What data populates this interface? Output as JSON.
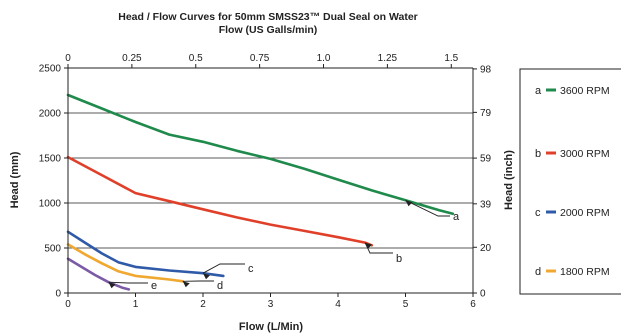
{
  "chart_data": {
    "type": "line",
    "title": "Head / Flow Curves for 50mm SMSS23™ Dual Seal on Water",
    "xlabel": "Flow (L/Min)",
    "ylabel": "Head (mm)",
    "x_top_label": "Flow (US Galls/min)",
    "y_right_label": "Head (inch)",
    "xlim": [
      0,
      6
    ],
    "ylim": [
      0,
      2500
    ],
    "x_ticks": [
      "0",
      "1",
      "2",
      "3",
      "4",
      "5",
      "6"
    ],
    "y_ticks": [
      "0",
      "500",
      "1000",
      "1500",
      "2000",
      "2500"
    ],
    "x_top_ticks": [
      {
        "value": 0,
        "label": "0"
      },
      {
        "value": 0.25,
        "label": "0.25"
      },
      {
        "value": 0.5,
        "label": "0.5"
      },
      {
        "value": 0.75,
        "label": "0.75"
      },
      {
        "value": 1.0,
        "label": "1.0"
      },
      {
        "value": 1.25,
        "label": "1.25"
      },
      {
        "value": 1.5,
        "label": "1.5"
      }
    ],
    "y_right_ticks": [
      {
        "value": 0,
        "label": "0"
      },
      {
        "value": 20,
        "label": "20"
      },
      {
        "value": 39,
        "label": "39"
      },
      {
        "value": 59,
        "label": "59"
      },
      {
        "value": 79,
        "label": "79"
      },
      {
        "value": 98,
        "label": "98"
      }
    ],
    "gridlines_y": [
      500,
      1000,
      1500,
      2000
    ],
    "series": [
      {
        "letter": "a",
        "rpm": "3600 RPM",
        "color": "#1f8a4c",
        "x": [
          0,
          0.5,
          1.0,
          1.5,
          2.0,
          2.5,
          3.0,
          3.5,
          4.0,
          4.5,
          5.0,
          5.5,
          5.7
        ],
        "y": [
          2200,
          2050,
          1900,
          1760,
          1680,
          1580,
          1490,
          1380,
          1260,
          1140,
          1030,
          920,
          880
        ]
      },
      {
        "letter": "b",
        "rpm": "3000 RPM",
        "color": "#e0402a",
        "x": [
          0,
          0.5,
          1.0,
          1.5,
          2.0,
          2.5,
          3.0,
          3.5,
          4.0,
          4.4,
          4.5
        ],
        "y": [
          1510,
          1310,
          1110,
          1020,
          930,
          840,
          760,
          690,
          620,
          560,
          530
        ]
      },
      {
        "letter": "c",
        "rpm": "2000 RPM",
        "color": "#2f5aa8",
        "x": [
          0,
          0.25,
          0.5,
          0.75,
          1.0,
          1.5,
          2.0,
          2.3
        ],
        "y": [
          680,
          560,
          440,
          340,
          290,
          250,
          220,
          190
        ]
      },
      {
        "letter": "d",
        "rpm": "1800 RPM",
        "color": "#f0a830",
        "x": [
          0,
          0.25,
          0.5,
          0.75,
          1.0,
          1.25,
          1.5,
          1.7
        ],
        "y": [
          540,
          430,
          330,
          240,
          190,
          170,
          150,
          130
        ]
      },
      {
        "letter": "e",
        "color": "#7b5aa6",
        "x": [
          0,
          0.2,
          0.4,
          0.6,
          0.8,
          0.9
        ],
        "y": [
          380,
          290,
          200,
          120,
          60,
          40
        ]
      }
    ],
    "legend": [
      {
        "letter": "a",
        "label": "3600 RPM",
        "color": "#1f8a4c"
      },
      {
        "letter": "b",
        "label": "3000 RPM",
        "color": "#e0402a"
      },
      {
        "letter": "c",
        "label": "2000 RPM",
        "color": "#2f5aa8"
      },
      {
        "letter": "d",
        "label": "1800 RPM",
        "color": "#f0a830"
      }
    ],
    "legend_position": "right"
  }
}
